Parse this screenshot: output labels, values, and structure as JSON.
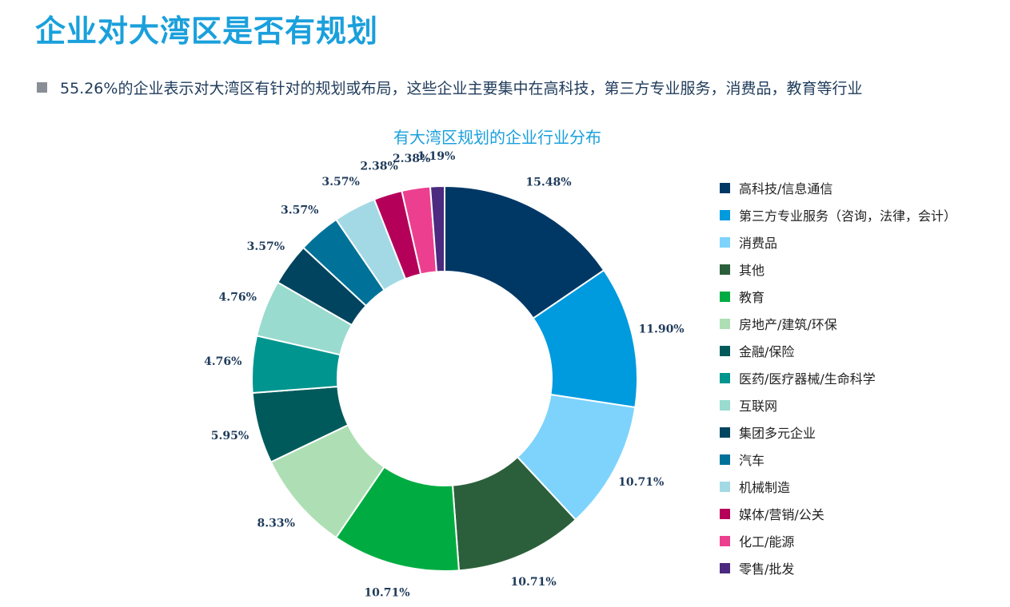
{
  "page": {
    "title": "企业对大湾区是否有规划",
    "bullet": "55.26%的企业表示对大湾区有针对的规划或布局，这些企业主要集中在高科技，第三方专业服务，消费品，教育等行业"
  },
  "chart_data": {
    "type": "pie",
    "title": "有大湾区规划的企业行业分布",
    "donut": true,
    "legend_position": "right",
    "categories": [
      "高科技/信息通信",
      "第三方专业服务（咨询，法律，会计）",
      "消费品",
      "其他",
      "教育",
      "房地产/建筑/环保",
      "金融/保险",
      "医药/医疗器械/生命科学",
      "互联网",
      "集团多元企业",
      "汽车",
      "机械制造",
      "媒体/营销/公关",
      "化工/能源",
      "零售/批发"
    ],
    "values": [
      15.48,
      11.9,
      10.71,
      10.71,
      10.71,
      8.33,
      5.95,
      4.76,
      4.76,
      3.57,
      3.57,
      3.57,
      2.38,
      2.38,
      1.19
    ],
    "labels": [
      "15.48%",
      "11.90%",
      "10.71%",
      "10.71%",
      "10.71%",
      "8.33%",
      "5.95%",
      "4.76%",
      "4.76%",
      "3.57%",
      "3.57%",
      "3.57%",
      "2.38%",
      "2.38%",
      "1.19%"
    ],
    "colors": [
      "#003865",
      "#009ade",
      "#7dd3fc",
      "#2b5f3b",
      "#00ac41",
      "#aedfb4",
      "#005a5b",
      "#00958f",
      "#99dbcf",
      "#00445f",
      "#00729a",
      "#a3d9e4",
      "#b5005a",
      "#ec3f8f",
      "#4b2a7f"
    ]
  }
}
